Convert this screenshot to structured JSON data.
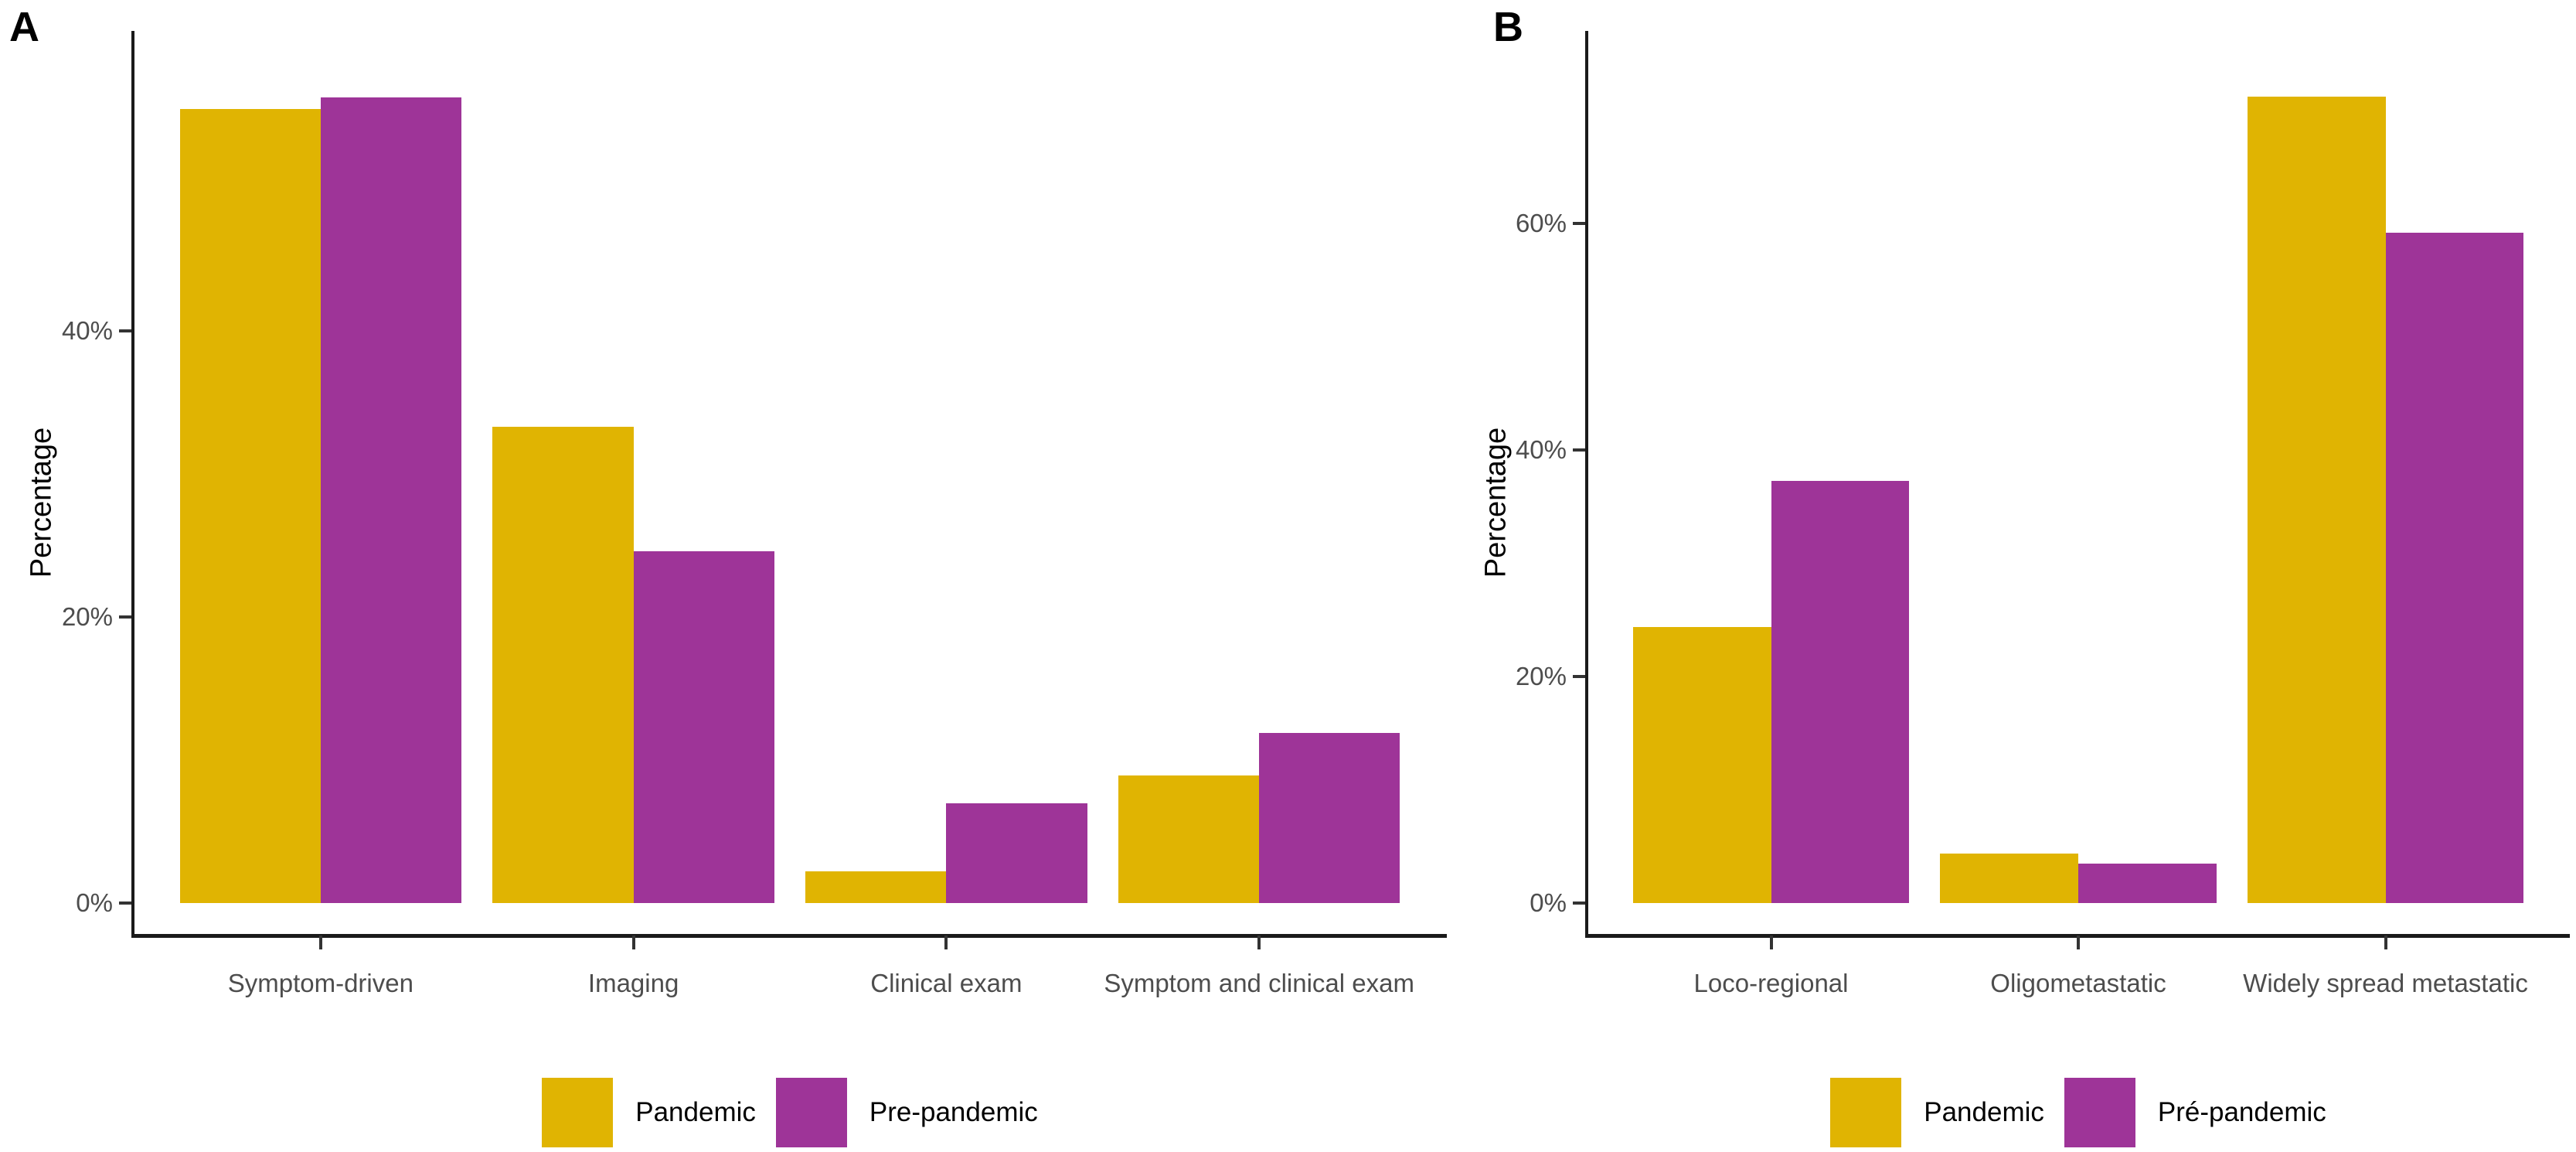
{
  "figure": {
    "background": "#FFFFFF",
    "colors": {
      "pandemic_gold": "#E0B402",
      "pre_pandemic_purple": "#9E3498",
      "axis_text": "#4D4D4D",
      "axis_line": "#1A1A1A"
    }
  },
  "chart_data": [
    {
      "type": "bar",
      "panel_tag": "A",
      "title": "",
      "xlabel": "",
      "ylabel": "Percentage",
      "ylim": [
        0,
        61
      ],
      "grid": "off",
      "legend_position": "bottom",
      "yticks": [
        {
          "value": 0,
          "label": "0%"
        },
        {
          "value": 20,
          "label": "20%"
        },
        {
          "value": 40,
          "label": "40%"
        }
      ],
      "categories": [
        "Symptom-driven",
        "Imaging",
        "Clinical exam",
        "Symptom and clinical exam"
      ],
      "series": [
        {
          "name": "Pandemic",
          "color": "#E0B402",
          "values": [
            55.5,
            33.3,
            2.2,
            8.9
          ]
        },
        {
          "name": "Pre-pandemic",
          "color": "#9E3498",
          "values": [
            56.3,
            24.6,
            7.0,
            11.9
          ]
        }
      ],
      "legend": [
        {
          "label": "Pandemic",
          "color": "#E0B402"
        },
        {
          "label": "Pre-pandemic",
          "color": "#9E3498"
        }
      ]
    },
    {
      "type": "bar",
      "panel_tag": "B",
      "title": "",
      "xlabel": "",
      "ylabel": "Percentage",
      "ylim": [
        0,
        77
      ],
      "grid": "off",
      "legend_position": "bottom",
      "yticks": [
        {
          "value": 0,
          "label": "0%"
        },
        {
          "value": 20,
          "label": "20%"
        },
        {
          "value": 40,
          "label": "40%"
        },
        {
          "value": 60,
          "label": "60%"
        }
      ],
      "categories": [
        "Loco-regional",
        "Oligometastatic",
        "Widely spread metastatic"
      ],
      "series": [
        {
          "name": "Pandemic",
          "color": "#E0B402",
          "values": [
            24.4,
            4.4,
            71.2
          ]
        },
        {
          "name": "Pré-pandemic",
          "color": "#9E3498",
          "values": [
            37.3,
            3.5,
            59.2
          ]
        }
      ],
      "legend": [
        {
          "label": "Pandemic",
          "color": "#E0B402"
        },
        {
          "label": "Pré-pandemic",
          "color": "#9E3498"
        }
      ]
    }
  ]
}
